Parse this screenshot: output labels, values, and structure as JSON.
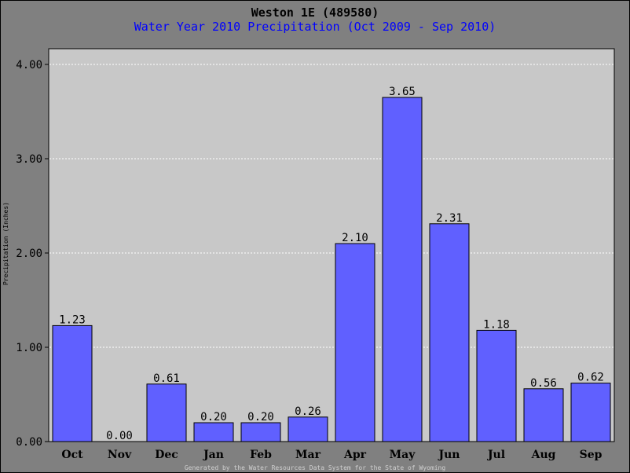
{
  "chart_data": {
    "type": "bar",
    "title": "Weston 1E (489580)",
    "subtitle": "Water Year 2010 Precipitation (Oct 2009 - Sep 2010)",
    "xlabel": "",
    "ylabel": "Precipitation (Inches)",
    "categories": [
      "Oct",
      "Nov",
      "Dec",
      "Jan",
      "Feb",
      "Mar",
      "Apr",
      "May",
      "Jun",
      "Jul",
      "Aug",
      "Sep"
    ],
    "values": [
      1.23,
      0.0,
      0.61,
      0.2,
      0.2,
      0.26,
      2.1,
      3.65,
      2.31,
      1.18,
      0.56,
      0.62
    ],
    "data_labels": [
      "1.23",
      "0.00",
      "0.61",
      "0.20",
      "0.20",
      "0.26",
      "2.10",
      "3.65",
      "2.31",
      "1.18",
      "0.56",
      "0.62"
    ],
    "ylim": [
      0,
      4.0
    ],
    "yticks": [
      0,
      1,
      2,
      3,
      4
    ],
    "ytick_labels": [
      "0.00",
      "1.00",
      "2.00",
      "3.00",
      "4.00"
    ],
    "grid": true,
    "legend": "none"
  },
  "footer": "Generated by the Water Resources Data System for the State of Wyoming",
  "colors": {
    "background": "#808080",
    "plot_area": "#c8c8c8",
    "bar_fill": "#6060ff",
    "title": "#000000",
    "subtitle": "#0000ff"
  }
}
